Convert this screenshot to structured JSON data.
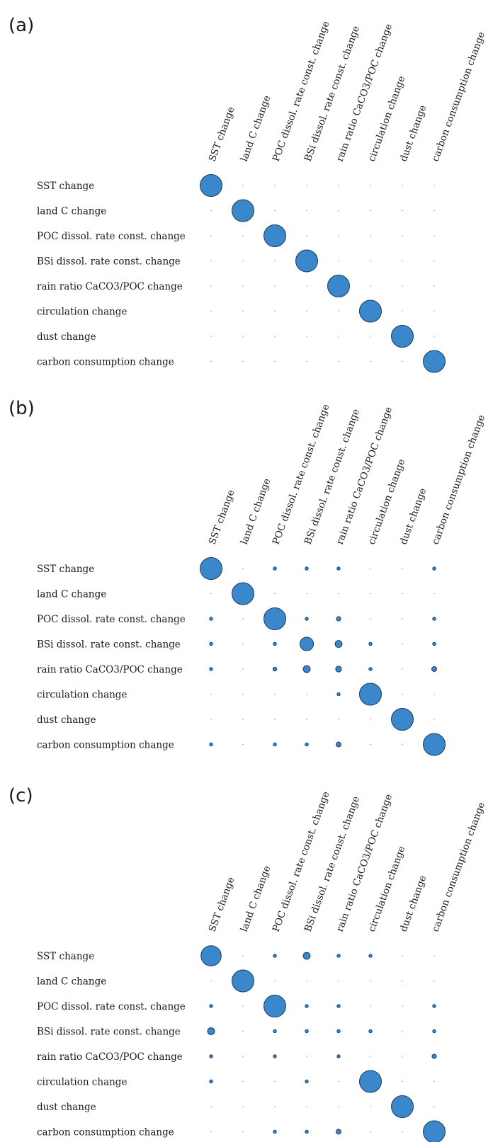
{
  "chart_data": [
    {
      "type": "bubble-matrix",
      "panel_label": "(a)",
      "rows": [
        "SST change",
        "land C change",
        "POC dissol. rate const. change",
        "BSi dissol. rate const. change",
        "rain ratio CaCO3/POC change",
        "circulation change",
        "dust change",
        "carbon consumption change"
      ],
      "columns": [
        "SST change",
        "land C change",
        "POC dissol. rate const. change",
        "BSi dissol. rate const. change",
        "rain ratio CaCO3/POC change",
        "circulation change",
        "dust change",
        "carbon consumption change"
      ],
      "values": [
        [
          1,
          0,
          0,
          0,
          0,
          0,
          0,
          0
        ],
        [
          0,
          1,
          0,
          0,
          0,
          0,
          0,
          0
        ],
        [
          0,
          0,
          1,
          0,
          0,
          0,
          0,
          0
        ],
        [
          0,
          0,
          0,
          1,
          0,
          0,
          0,
          0
        ],
        [
          0,
          0,
          0,
          0,
          1,
          0,
          0,
          0
        ],
        [
          0,
          0,
          0,
          0,
          0,
          1,
          0,
          0
        ],
        [
          0,
          0,
          0,
          0,
          0,
          0,
          1,
          0
        ],
        [
          0,
          0,
          0,
          0,
          0,
          0,
          0,
          1
        ]
      ],
      "marker_color": "#3a87cc"
    },
    {
      "type": "bubble-matrix",
      "panel_label": "(b)",
      "rows": [
        "SST change",
        "land C change",
        "POC dissol. rate const. change",
        "BSi dissol. rate const. change",
        "rain ratio CaCO3/POC change",
        "circulation change",
        "dust change",
        "carbon consumption change"
      ],
      "columns": [
        "SST change",
        "land C change",
        "POC dissol. rate const. change",
        "BSi dissol. rate const. change",
        "rain ratio CaCO3/POC change",
        "circulation change",
        "dust change",
        "carbon consumption change"
      ],
      "values": [
        [
          1,
          0,
          0.01,
          0.01,
          0.02,
          0,
          0,
          0.01
        ],
        [
          0,
          1,
          0,
          0,
          0,
          0,
          0,
          0
        ],
        [
          0.01,
          0,
          1,
          0.02,
          0.04,
          0,
          0,
          0.01
        ],
        [
          0.01,
          0,
          0.02,
          0.38,
          0.1,
          0.01,
          0,
          0.02
        ],
        [
          0.02,
          0,
          0.03,
          0.1,
          0.07,
          0.01,
          0,
          0.05
        ],
        [
          0,
          0,
          0,
          0,
          0.01,
          1,
          0,
          0
        ],
        [
          0,
          0,
          0,
          0,
          0,
          0,
          1,
          0
        ],
        [
          0.01,
          0,
          0.01,
          0.02,
          0.05,
          0,
          0,
          1
        ]
      ],
      "marker_color": "#3a87cc"
    },
    {
      "type": "bubble-matrix",
      "panel_label": "(c)",
      "rows": [
        "SST change",
        "land C change",
        "POC dissol. rate const. change",
        "BSi dissol. rate const. change",
        "rain ratio CaCO3/POC change",
        "circulation change",
        "dust change",
        "carbon consumption change"
      ],
      "columns": [
        "SST change",
        "land C change",
        "POC dissol. rate const. change",
        "BSi dissol. rate const. change",
        "rain ratio CaCO3/POC change",
        "circulation change",
        "dust change",
        "carbon consumption change"
      ],
      "values": [
        [
          0.85,
          0,
          0.01,
          0.1,
          0.01,
          0.01,
          0,
          0
        ],
        [
          0,
          1,
          0,
          0,
          0,
          0,
          0,
          0
        ],
        [
          0.01,
          0,
          1,
          0.02,
          0.02,
          0,
          0,
          0.01
        ],
        [
          0.1,
          0,
          0.02,
          0.02,
          0.01,
          0.02,
          0,
          0.02
        ],
        [
          0.01,
          0,
          0.02,
          0,
          0.01,
          0,
          0,
          0.04
        ],
        [
          0.01,
          0,
          0,
          0.02,
          0,
          1,
          0,
          0
        ],
        [
          0,
          0,
          0,
          0,
          0,
          0,
          1,
          0
        ],
        [
          0,
          0,
          0.01,
          0.02,
          0.05,
          0,
          0,
          1
        ]
      ],
      "marker_color": "#3a87cc"
    }
  ]
}
